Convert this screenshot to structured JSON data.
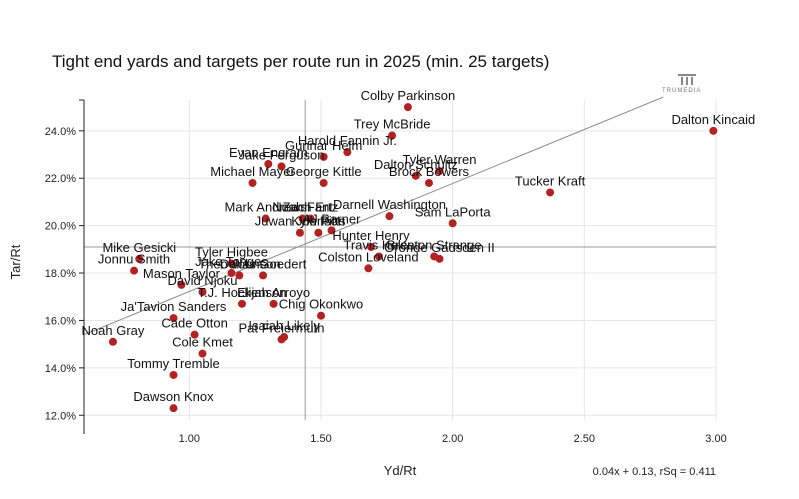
{
  "chart_data": {
    "type": "scatter",
    "title": "Tight end yards and targets per route run in 2025 (min. 25 targets)",
    "xlabel": "Yd/Rt",
    "ylabel": "Tar/Rt",
    "xlim": [
      0.6,
      3.0
    ],
    "ylim": [
      0.118,
      0.253
    ],
    "x_ticks": [
      1.0,
      1.5,
      2.0,
      2.5,
      3.0
    ],
    "x_tick_labels": [
      "1.00",
      "1.50",
      "2.00",
      "2.50",
      "3.00"
    ],
    "y_ticks": [
      0.12,
      0.14,
      0.16,
      0.18,
      0.2,
      0.22,
      0.24
    ],
    "y_tick_labels": [
      "12.0%",
      "14.0%",
      "16.0%",
      "18.0%",
      "20.0%",
      "22.0%",
      "24.0%"
    ],
    "mean_x": 1.44,
    "mean_y": 0.191,
    "trendline": {
      "slope": 0.04,
      "intercept": 0.13,
      "rsq": 0.411
    },
    "trendline_label": "0.04x + 0.13, rSq = 0.411",
    "logo_text": "TRUMEDIA",
    "point_color": "#b22222",
    "points": [
      {
        "name": "Colby Parkinson",
        "x": 1.83,
        "y": 0.25
      },
      {
        "name": "Trey McBride",
        "x": 1.77,
        "y": 0.238
      },
      {
        "name": "Dalton Kincaid",
        "x": 2.99,
        "y": 0.24
      },
      {
        "name": "Harold Fannin Jr.",
        "x": 1.6,
        "y": 0.231
      },
      {
        "name": "Evan Engram",
        "x": 1.3,
        "y": 0.226
      },
      {
        "name": "Gunnar Helm",
        "x": 1.51,
        "y": 0.229
      },
      {
        "name": "Tyler Warren",
        "x": 1.95,
        "y": 0.223
      },
      {
        "name": "Brock Bowers",
        "x": 1.91,
        "y": 0.218
      },
      {
        "name": "Jake Ferguson",
        "x": 1.35,
        "y": 0.225
      },
      {
        "name": "Dalton Schultz",
        "x": 1.86,
        "y": 0.221
      },
      {
        "name": "Michael Mayer",
        "x": 1.24,
        "y": 0.218
      },
      {
        "name": "George Kittle",
        "x": 1.51,
        "y": 0.218
      },
      {
        "name": "Tucker Kraft",
        "x": 2.37,
        "y": 0.214
      },
      {
        "name": "Zach Ertz",
        "x": 1.46,
        "y": 0.203
      },
      {
        "name": "Mark Andrews",
        "x": 1.29,
        "y": 0.203
      },
      {
        "name": "Darnell Washington",
        "x": 1.76,
        "y": 0.204
      },
      {
        "name": "Noah Fant",
        "x": 1.43,
        "y": 0.203
      },
      {
        "name": "Sam LaPorta",
        "x": 2.0,
        "y": 0.201
      },
      {
        "name": "AJ Barner",
        "x": 1.54,
        "y": 0.198
      },
      {
        "name": "Kyle Pitts",
        "x": 1.49,
        "y": 0.197
      },
      {
        "name": "Juwan Johnson",
        "x": 1.42,
        "y": 0.197
      },
      {
        "name": "Hunter Henry",
        "x": 1.69,
        "y": 0.191
      },
      {
        "name": "Mike Gesicki",
        "x": 0.81,
        "y": 0.186
      },
      {
        "name": "Tyler Higbee",
        "x": 1.16,
        "y": 0.184
      },
      {
        "name": "Travis Kelce",
        "x": 1.72,
        "y": 0.187
      },
      {
        "name": "Brenton Strange",
        "x": 1.93,
        "y": 0.187
      },
      {
        "name": "Oronde Gadsden II",
        "x": 1.95,
        "y": 0.186
      },
      {
        "name": "Jonnu Smith",
        "x": 0.79,
        "y": 0.181
      },
      {
        "name": "Jake Tonges",
        "x": 1.16,
        "y": 0.18
      },
      {
        "name": "Theo Johnson",
        "x": 1.19,
        "y": 0.179
      },
      {
        "name": "Colston Loveland",
        "x": 1.68,
        "y": 0.182
      },
      {
        "name": "Dallas Goedert",
        "x": 1.28,
        "y": 0.179
      },
      {
        "name": "Mason Taylor",
        "x": 0.97,
        "y": 0.175
      },
      {
        "name": "David Njoku",
        "x": 1.05,
        "y": 0.172
      },
      {
        "name": "T.J. Hockenson",
        "x": 1.2,
        "y": 0.167
      },
      {
        "name": "Elijah Arroyo",
        "x": 1.32,
        "y": 0.167
      },
      {
        "name": "Chig Okonkwo",
        "x": 1.5,
        "y": 0.162
      },
      {
        "name": "Ja'Tavion Sanders",
        "x": 0.94,
        "y": 0.161
      },
      {
        "name": "Noah Gray",
        "x": 0.71,
        "y": 0.151
      },
      {
        "name": "Cade Otton",
        "x": 1.02,
        "y": 0.154
      },
      {
        "name": "Pat Freiermuth",
        "x": 1.35,
        "y": 0.152
      },
      {
        "name": "Isaiah Likely",
        "x": 1.36,
        "y": 0.153
      },
      {
        "name": "Cole Kmet",
        "x": 1.05,
        "y": 0.146
      },
      {
        "name": "Tommy Tremble",
        "x": 0.94,
        "y": 0.137
      },
      {
        "name": "Dawson Knox",
        "x": 0.94,
        "y": 0.123
      }
    ]
  }
}
